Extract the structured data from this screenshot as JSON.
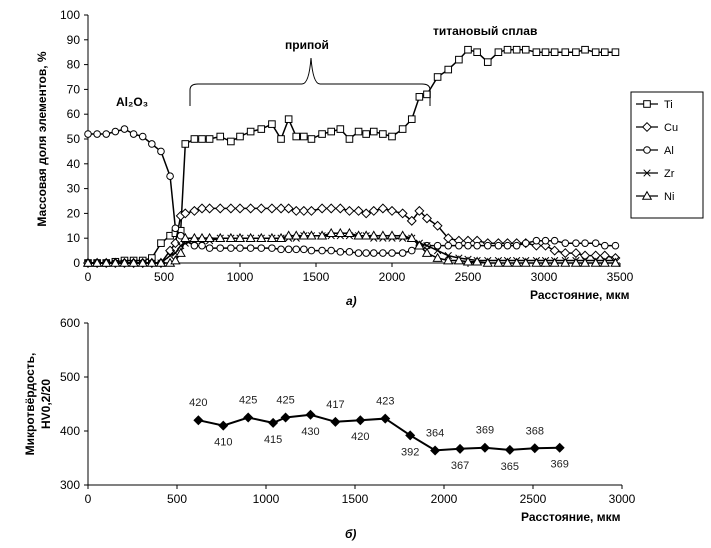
{
  "chart_data": [
    {
      "type": "line",
      "panel": "а)",
      "ylabel": "Массовая доля элементов, %",
      "xlabel": "Расстояние, мкм",
      "xlim": [
        0,
        3500
      ],
      "ylim": [
        0,
        100
      ],
      "xticks": [
        0,
        500,
        1000,
        1500,
        2000,
        2500,
        3000,
        3500
      ],
      "yticks": [
        0,
        10,
        20,
        30,
        40,
        50,
        60,
        70,
        80,
        90,
        100
      ],
      "grid": false,
      "legend_position": "right",
      "annotations": [
        {
          "text": "Al₂O₃"
        },
        {
          "text": "припой"
        },
        {
          "text": "титановый сплав"
        }
      ],
      "x": [
        0,
        60,
        120,
        180,
        240,
        300,
        360,
        420,
        480,
        540,
        575,
        610,
        640,
        700,
        750,
        800,
        870,
        940,
        1000,
        1070,
        1140,
        1210,
        1270,
        1320,
        1370,
        1420,
        1470,
        1540,
        1600,
        1660,
        1720,
        1780,
        1830,
        1880,
        1940,
        2000,
        2070,
        2130,
        2180,
        2230,
        2300,
        2370,
        2440,
        2500,
        2560,
        2630,
        2700,
        2760,
        2820,
        2880,
        2950,
        3010,
        3070,
        3140,
        3210,
        3270,
        3340,
        3400,
        3470
      ],
      "series": [
        {
          "name": "Ti",
          "marker": "square",
          "values": [
            0,
            0,
            0,
            0.5,
            1,
            1,
            1,
            2,
            8,
            11,
            12,
            13,
            48,
            50,
            50,
            50,
            51,
            49,
            51,
            53,
            54,
            56,
            50,
            58,
            51,
            51,
            50,
            52,
            53,
            54,
            50,
            53,
            52,
            53,
            52,
            51,
            54,
            58,
            67,
            68,
            75,
            78,
            82,
            86,
            85,
            81,
            85,
            86,
            86,
            86,
            85,
            85,
            85,
            85,
            85,
            86,
            85,
            85,
            85
          ]
        },
        {
          "name": "Cu",
          "marker": "diamond",
          "values": [
            0,
            0,
            0,
            0,
            0,
            0,
            0,
            0,
            0,
            5,
            8,
            19,
            20,
            21,
            22,
            22,
            22,
            22,
            22,
            22,
            22,
            22,
            22,
            22,
            21,
            21,
            21,
            22,
            22,
            22,
            21,
            21,
            20,
            21,
            22,
            21,
            20,
            17,
            21,
            18,
            15,
            10,
            9,
            9,
            9,
            8,
            8,
            8,
            8,
            8,
            7,
            7,
            5,
            4,
            4,
            3,
            3,
            3,
            2
          ]
        },
        {
          "name": "Al",
          "marker": "circle",
          "values": [
            52,
            52,
            52,
            53,
            54,
            52,
            51,
            48,
            45,
            35,
            14,
            11,
            9,
            7,
            7,
            6,
            6,
            6,
            6,
            6,
            6,
            6,
            5.5,
            5.5,
            5.5,
            5.5,
            5,
            5,
            5,
            4.5,
            4.5,
            4,
            4,
            4,
            4,
            4,
            4,
            5,
            7,
            7,
            7,
            7,
            7,
            7,
            7,
            7,
            7,
            7,
            7,
            8,
            9,
            9,
            9,
            8,
            8,
            8,
            8,
            7,
            7
          ]
        },
        {
          "name": "Zr",
          "marker": "x",
          "values": [
            0,
            0,
            0,
            0,
            0,
            0,
            0,
            0,
            0,
            3,
            4,
            7,
            8,
            9,
            9,
            9,
            10,
            10,
            10,
            10,
            10,
            10,
            10,
            10,
            10,
            11,
            11,
            11,
            11,
            11,
            11,
            11,
            11,
            10,
            10,
            10,
            10,
            10,
            8,
            7,
            5,
            3,
            2,
            1.5,
            1,
            1,
            1,
            1,
            1,
            1,
            1,
            1,
            1,
            1,
            1,
            1,
            1,
            1,
            1
          ]
        },
        {
          "name": "Ni",
          "marker": "triangle",
          "values": [
            0,
            0,
            0,
            0,
            0,
            0,
            0,
            0,
            0,
            0,
            1,
            4,
            10,
            10,
            10,
            10,
            10,
            10,
            10,
            10,
            10,
            10,
            10,
            11,
            11,
            11,
            11,
            11,
            12,
            12,
            12,
            11,
            11,
            11,
            11,
            11,
            11,
            10,
            7,
            4,
            2,
            1,
            1,
            0.5,
            0.5,
            0,
            0,
            0,
            0,
            0,
            0,
            0,
            0,
            0,
            0,
            0,
            0,
            0,
            0
          ]
        }
      ]
    },
    {
      "type": "line",
      "panel": "б)",
      "ylabel": "Микротвёрдость, HV0,2/20",
      "xlabel": "Расстояние, мкм",
      "xlim": [
        0,
        3000
      ],
      "ylim": [
        300,
        600
      ],
      "xticks": [
        0,
        500,
        1000,
        1500,
        2000,
        2500,
        3000
      ],
      "yticks": [
        300,
        400,
        500,
        600
      ],
      "grid": false,
      "x": [
        620,
        760,
        900,
        1040,
        1110,
        1250,
        1390,
        1530,
        1670,
        1810,
        1950,
        2090,
        2230,
        2370,
        2510,
        2650
      ],
      "values": [
        420,
        410,
        425,
        415,
        425,
        430,
        417,
        420,
        423,
        392,
        364,
        367,
        369,
        365,
        368,
        369
      ],
      "labels": [
        "420",
        "410",
        "425",
        "415",
        "425",
        "430",
        "417",
        "420",
        "423",
        "392",
        "364",
        "367",
        "369",
        "365",
        "368",
        "369"
      ]
    }
  ]
}
